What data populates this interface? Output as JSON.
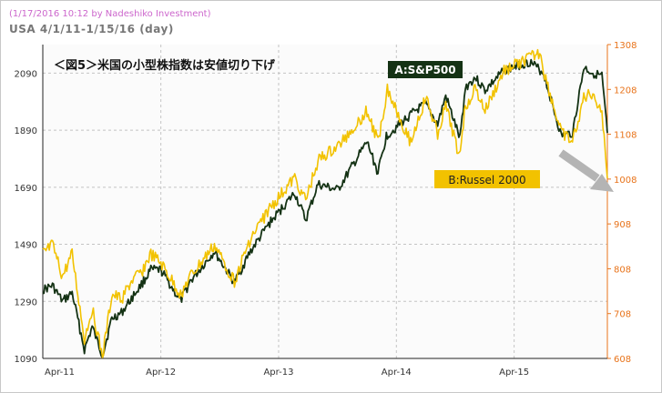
{
  "header": {
    "credit": "(1/17/2016 10:12 by Nadeshiko Investment)",
    "title": "USA  4/1/11-1/15/16 (day)"
  },
  "chart_data": {
    "type": "line",
    "title": "＜図5＞米国の小型株指数は安値切り下げ",
    "x_ticks": [
      "Apr-11",
      "Apr-12",
      "Apr-13",
      "Apr-14",
      "Apr-15"
    ],
    "y_left": {
      "ticks": [
        1090,
        1290,
        1490,
        1690,
        1890,
        2090
      ],
      "range": [
        1090,
        2190
      ]
    },
    "y_right": {
      "ticks": [
        608,
        708,
        808,
        908,
        1008,
        1108,
        1208,
        1308
      ],
      "range": [
        608,
        1308
      ]
    },
    "grid": true,
    "colors": {
      "sp500": "#143214",
      "russell": "#f2c200",
      "right_axis": "#e8731a",
      "arrow": "#b4b4b4"
    },
    "annotations": {
      "arrow": "down-right",
      "arrow_icon": "arrow-down-right-icon"
    },
    "series": [
      {
        "name": "A:S&P500",
        "axis": "left",
        "points": [
          [
            "2011-04-01",
            1330
          ],
          [
            "2011-05-01",
            1345
          ],
          [
            "2011-06-01",
            1290
          ],
          [
            "2011-07-01",
            1320
          ],
          [
            "2011-08-08",
            1120
          ],
          [
            "2011-09-01",
            1200
          ],
          [
            "2011-10-03",
            1100
          ],
          [
            "2011-11-01",
            1230
          ],
          [
            "2011-12-01",
            1250
          ],
          [
            "2012-01-01",
            1300
          ],
          [
            "2012-02-01",
            1350
          ],
          [
            "2012-03-01",
            1400
          ],
          [
            "2012-04-01",
            1400
          ],
          [
            "2012-06-01",
            1290
          ],
          [
            "2012-07-01",
            1360
          ],
          [
            "2012-09-14",
            1465
          ],
          [
            "2012-11-15",
            1355
          ],
          [
            "2013-01-01",
            1460
          ],
          [
            "2013-03-01",
            1560
          ],
          [
            "2013-05-21",
            1670
          ],
          [
            "2013-06-24",
            1575
          ],
          [
            "2013-08-01",
            1700
          ],
          [
            "2013-10-01",
            1680
          ],
          [
            "2013-12-31",
            1848
          ],
          [
            "2014-02-03",
            1740
          ],
          [
            "2014-03-01",
            1870
          ],
          [
            "2014-06-01",
            1960
          ],
          [
            "2014-07-01",
            1980
          ],
          [
            "2014-08-07",
            1910
          ],
          [
            "2014-09-01",
            2010
          ],
          [
            "2014-10-15",
            1860
          ],
          [
            "2014-11-01",
            2040
          ],
          [
            "2014-12-01",
            2075
          ],
          [
            "2015-01-01",
            2030
          ],
          [
            "2015-03-01",
            2100
          ],
          [
            "2015-05-20",
            2130
          ],
          [
            "2015-07-01",
            2090
          ],
          [
            "2015-08-25",
            1870
          ],
          [
            "2015-09-29",
            1880
          ],
          [
            "2015-11-03",
            2110
          ],
          [
            "2015-12-01",
            2090
          ],
          [
            "2015-12-29",
            2080
          ],
          [
            "2016-01-15",
            1880
          ]
        ]
      },
      {
        "name": "B:Russel 2000",
        "axis": "right",
        "points": [
          [
            "2011-04-01",
            840
          ],
          [
            "2011-05-01",
            860
          ],
          [
            "2011-06-01",
            790
          ],
          [
            "2011-07-01",
            840
          ],
          [
            "2011-08-08",
            650
          ],
          [
            "2011-09-01",
            720
          ],
          [
            "2011-10-03",
            610
          ],
          [
            "2011-11-01",
            750
          ],
          [
            "2011-12-01",
            740
          ],
          [
            "2012-01-01",
            780
          ],
          [
            "2012-02-01",
            800
          ],
          [
            "2012-03-01",
            840
          ],
          [
            "2012-04-01",
            820
          ],
          [
            "2012-06-01",
            750
          ],
          [
            "2012-07-01",
            790
          ],
          [
            "2012-09-14",
            860
          ],
          [
            "2012-11-15",
            780
          ],
          [
            "2013-01-01",
            870
          ],
          [
            "2013-03-01",
            940
          ],
          [
            "2013-05-21",
            1010
          ],
          [
            "2013-06-24",
            960
          ],
          [
            "2013-08-01",
            1050
          ],
          [
            "2013-10-01",
            1080
          ],
          [
            "2013-12-31",
            1160
          ],
          [
            "2014-02-03",
            1090
          ],
          [
            "2014-03-04",
            1210
          ],
          [
            "2014-05-15",
            1090
          ],
          [
            "2014-07-01",
            1190
          ],
          [
            "2014-08-07",
            1110
          ],
          [
            "2014-09-01",
            1170
          ],
          [
            "2014-10-13",
            1060
          ],
          [
            "2014-11-01",
            1170
          ],
          [
            "2014-12-01",
            1210
          ],
          [
            "2015-01-01",
            1160
          ],
          [
            "2015-03-01",
            1250
          ],
          [
            "2015-06-23",
            1290
          ],
          [
            "2015-07-01",
            1250
          ],
          [
            "2015-08-25",
            1110
          ],
          [
            "2015-09-29",
            1090
          ],
          [
            "2015-11-03",
            1190
          ],
          [
            "2015-12-01",
            1200
          ],
          [
            "2015-12-29",
            1160
          ],
          [
            "2016-01-15",
            1010
          ]
        ]
      }
    ]
  }
}
